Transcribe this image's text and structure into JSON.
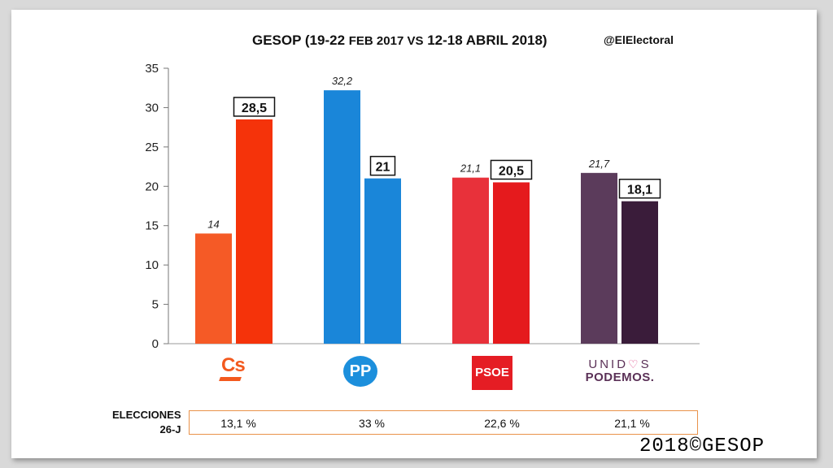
{
  "header": {
    "title_main": "GESOP (19-22 ",
    "title_small": "FEB 2017 VS",
    "title_end": " 12-18 ABRIL 2018)",
    "handle": "@ElElectoral"
  },
  "chart_data": {
    "type": "bar",
    "categories": [
      "Cs",
      "PP",
      "PSOE",
      "Unidos Podemos"
    ],
    "series": [
      {
        "values": [
          14,
          32.2,
          21.1,
          21.7
        ],
        "labels": [
          "14",
          "32,2",
          "21,1",
          "21,7"
        ]
      },
      {
        "values": [
          28.5,
          21,
          20.5,
          18.1
        ],
        "labels": [
          "28,5",
          "21",
          "20,5",
          "18,1"
        ]
      }
    ],
    "colors": {
      "Cs": [
        "#f55a26",
        "#f5330a"
      ],
      "PP": [
        "#1a86d9",
        "#1a86d9"
      ],
      "PSOE": [
        "#e8313a",
        "#e51a1d"
      ],
      "Unidos Podemos": [
        "#5b3b5b",
        "#3a1c3a"
      ]
    },
    "ylim": [
      0,
      35
    ],
    "yticks": [
      "0",
      "5",
      "10",
      "15",
      "20",
      "25",
      "30",
      "35"
    ],
    "ytick_values": [
      0,
      5,
      10,
      15,
      20,
      25,
      30,
      35
    ],
    "grid": false,
    "legend": "party logos below x-axis"
  },
  "logos": {
    "cs": "Cs",
    "pp": "PP",
    "psoe": "PSOE",
    "up_line1_a": "UNID",
    "up_line1_b": "S",
    "up_line2": "PODEMOS."
  },
  "elections": {
    "label_line1": "ELECCIONES",
    "label_line2": "26-J",
    "values": [
      "13,1 %",
      "33 %",
      "22,6 %",
      "21,1 %"
    ]
  },
  "footer": {
    "copyright": "2018©GESOP"
  }
}
